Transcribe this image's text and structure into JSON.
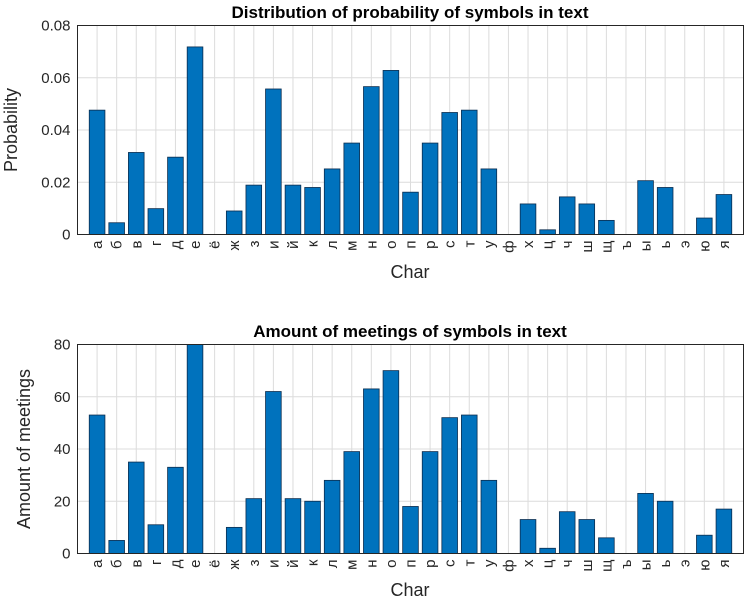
{
  "chart_data": [
    {
      "type": "bar",
      "title": "Distribution of probability of symbols in text",
      "xlabel": "Char",
      "ylabel": "Probability",
      "ylim": [
        0,
        0.08
      ],
      "yticks": [
        0,
        0.02,
        0.04,
        0.06,
        0.08
      ],
      "ytick_labels": [
        "0",
        "0.02",
        "0.04",
        "0.06",
        "0.08"
      ],
      "grid": true,
      "bar_color": "#0072BD",
      "categories": [
        "а",
        "б",
        "в",
        "г",
        "д",
        "е",
        "ё",
        "ж",
        "з",
        "и",
        "й",
        "к",
        "л",
        "м",
        "н",
        "о",
        "п",
        "р",
        "с",
        "т",
        "у",
        "ф",
        "х",
        "ц",
        "ч",
        "ш",
        "щ",
        "ъ",
        "ы",
        "ь",
        "э",
        "ю",
        "я"
      ],
      "values": [
        0.0476,
        0.0045,
        0.0314,
        0.0099,
        0.0296,
        0.0718,
        0.0,
        0.009,
        0.0189,
        0.0557,
        0.0189,
        0.018,
        0.0251,
        0.035,
        0.0566,
        0.0628,
        0.0162,
        0.035,
        0.0467,
        0.0476,
        0.0251,
        0.0,
        0.0117,
        0.0018,
        0.0144,
        0.0117,
        0.0054,
        0.0,
        0.0206,
        0.018,
        0.0,
        0.0063,
        0.0153
      ]
    },
    {
      "type": "bar",
      "title": "Amount of meetings of symbols in text",
      "xlabel": "Char",
      "ylabel": "Amount of meetings",
      "ylim": [
        0,
        80
      ],
      "yticks": [
        0,
        20,
        40,
        60,
        80
      ],
      "ytick_labels": [
        "0",
        "20",
        "40",
        "60",
        "80"
      ],
      "grid": true,
      "bar_color": "#0072BD",
      "categories": [
        "а",
        "б",
        "в",
        "г",
        "д",
        "е",
        "ё",
        "ж",
        "з",
        "и",
        "й",
        "к",
        "л",
        "м",
        "н",
        "о",
        "п",
        "р",
        "с",
        "т",
        "у",
        "ф",
        "х",
        "ц",
        "ч",
        "ш",
        "щ",
        "ъ",
        "ы",
        "ь",
        "э",
        "ю",
        "я"
      ],
      "values": [
        53,
        5,
        35,
        11,
        33,
        80,
        0,
        10,
        21,
        62,
        21,
        20,
        28,
        39,
        63,
        70,
        18,
        39,
        52,
        53,
        28,
        0,
        13,
        2,
        16,
        13,
        6,
        0,
        23,
        20,
        0,
        7,
        17
      ]
    }
  ]
}
